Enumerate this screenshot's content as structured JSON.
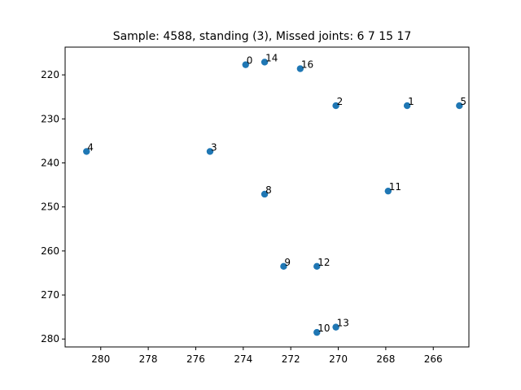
{
  "chart_data": {
    "type": "scatter",
    "title": "Sample: 4588, standing (3), Missed joints: 6  7  15  17",
    "xlabel": "",
    "ylabel": "",
    "xlim": [
      281.5,
      264.5
    ],
    "ylim": [
      281.8,
      213.7
    ],
    "x_inverted": true,
    "y_inverted": true,
    "grid": false,
    "legend": "none",
    "marker_color": "#1f77b4",
    "x_ticks": [
      280,
      278,
      276,
      274,
      272,
      270,
      268,
      266
    ],
    "y_ticks": [
      220,
      230,
      240,
      250,
      260,
      270,
      280
    ],
    "points": [
      {
        "label": "0",
        "x": 273.9,
        "y": 217.7
      },
      {
        "label": "1",
        "x": 267.1,
        "y": 227.0
      },
      {
        "label": "2",
        "x": 270.1,
        "y": 227.0
      },
      {
        "label": "3",
        "x": 275.4,
        "y": 237.4
      },
      {
        "label": "4",
        "x": 280.6,
        "y": 237.4
      },
      {
        "label": "5",
        "x": 264.9,
        "y": 227.0
      },
      {
        "label": "8",
        "x": 273.1,
        "y": 247.1
      },
      {
        "label": "9",
        "x": 272.3,
        "y": 263.5
      },
      {
        "label": "10",
        "x": 270.9,
        "y": 278.5
      },
      {
        "label": "11",
        "x": 267.9,
        "y": 246.4
      },
      {
        "label": "12",
        "x": 270.9,
        "y": 263.5
      },
      {
        "label": "13",
        "x": 270.1,
        "y": 277.3
      },
      {
        "label": "14",
        "x": 273.1,
        "y": 217.1
      },
      {
        "label": "16",
        "x": 271.6,
        "y": 218.6
      }
    ]
  }
}
